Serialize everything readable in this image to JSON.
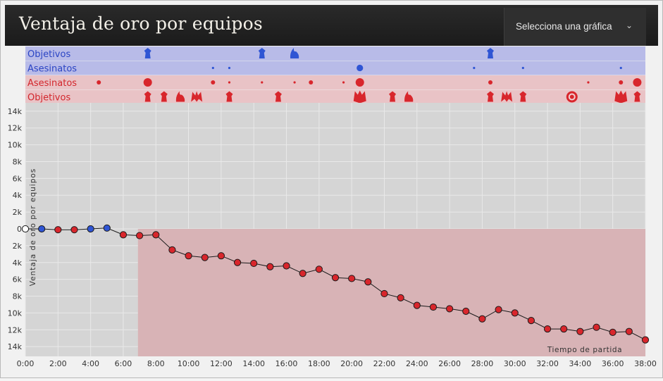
{
  "header": {
    "title": "Ventaja de oro por equipos",
    "selector_label": "Selecciona una gráfica"
  },
  "colors": {
    "blue": "#2f55d4",
    "red": "#d8262c",
    "blue_band": "#b8bbe8",
    "red_band": "#e9c3c6",
    "plot_bg": "#d5d5d5",
    "red_area": "#d8b3b6"
  },
  "timeline_rows": [
    {
      "label": "Objetivos",
      "team": "blue",
      "kind": "objectives",
      "events": [
        {
          "t": 7.5,
          "icon": "tower-icon"
        },
        {
          "t": 14.5,
          "icon": "tower-icon"
        },
        {
          "t": 16.5,
          "icon": "dragon-icon"
        },
        {
          "t": 28.5,
          "icon": "tower-icon"
        }
      ]
    },
    {
      "label": "Asesinatos",
      "team": "blue",
      "kind": "kills",
      "events": [
        {
          "t": 11.5,
          "size": 1
        },
        {
          "t": 12.5,
          "size": 1
        },
        {
          "t": 20.5,
          "size": 3
        },
        {
          "t": 27.5,
          "size": 1
        },
        {
          "t": 30.5,
          "size": 1
        },
        {
          "t": 36.5,
          "size": 1
        }
      ]
    },
    {
      "label": "Asesinatos",
      "team": "red",
      "kind": "kills",
      "events": [
        {
          "t": 4.5,
          "size": 2
        },
        {
          "t": 7.5,
          "size": 4
        },
        {
          "t": 11.5,
          "size": 2
        },
        {
          "t": 12.5,
          "size": 1
        },
        {
          "t": 14.5,
          "size": 1
        },
        {
          "t": 16.5,
          "size": 1
        },
        {
          "t": 17.5,
          "size": 2
        },
        {
          "t": 19.5,
          "size": 1
        },
        {
          "t": 20.5,
          "size": 4
        },
        {
          "t": 28.5,
          "size": 2
        },
        {
          "t": 34.5,
          "size": 1
        },
        {
          "t": 36.5,
          "size": 2
        },
        {
          "t": 37.5,
          "size": 4
        }
      ]
    },
    {
      "label": "Objetivos",
      "team": "red",
      "kind": "objectives",
      "events": [
        {
          "t": 7.5,
          "icon": "tower-icon"
        },
        {
          "t": 8.5,
          "icon": "tower-icon"
        },
        {
          "t": 9.5,
          "icon": "dragon-icon"
        },
        {
          "t": 10.5,
          "icon": "baron-icon"
        },
        {
          "t": 12.5,
          "icon": "tower-icon"
        },
        {
          "t": 15.5,
          "icon": "tower-icon"
        },
        {
          "t": 20.5,
          "icon": "inhibitor-icon"
        },
        {
          "t": 22.5,
          "icon": "tower-icon"
        },
        {
          "t": 23.5,
          "icon": "dragon-icon"
        },
        {
          "t": 28.5,
          "icon": "tower-icon"
        },
        {
          "t": 29.5,
          "icon": "baron-icon"
        },
        {
          "t": 30.5,
          "icon": "tower-icon"
        },
        {
          "t": 33.5,
          "icon": "nexus-icon"
        },
        {
          "t": 36.5,
          "icon": "inhibitor-icon"
        },
        {
          "t": 37.5,
          "icon": "tower-icon"
        }
      ]
    }
  ],
  "chart_data": {
    "type": "line",
    "title": "",
    "xlabel": "Tiempo de partida",
    "ylabel": "Ventaja de oro por equipos",
    "x_unit": "minutes",
    "xlim": [
      0,
      38
    ],
    "ylim": [
      -14000,
      14000
    ],
    "xticks": [
      0,
      2,
      4,
      6,
      8,
      10,
      12,
      14,
      16,
      18,
      20,
      22,
      24,
      26,
      28,
      30,
      32,
      34,
      36,
      38
    ],
    "xtick_labels": [
      "0:00",
      "2:00",
      "4:00",
      "6:00",
      "8:00",
      "10:00",
      "12:00",
      "14:00",
      "16:00",
      "18:00",
      "20:00",
      "22:00",
      "24:00",
      "26:00",
      "28:00",
      "30:00",
      "32:00",
      "34:00",
      "36:00",
      "38:00"
    ],
    "yticks": [
      14000,
      12000,
      10000,
      8000,
      6000,
      4000,
      2000,
      0,
      -2000,
      -4000,
      -6000,
      -8000,
      -10000,
      -12000,
      -14000
    ],
    "ytick_labels": [
      "14k",
      "12k",
      "10k",
      "8k",
      "6k",
      "4k",
      "2k",
      "0",
      "2k",
      "4k",
      "6k",
      "8k",
      "10k",
      "12k",
      "14k"
    ],
    "grid": true,
    "series": [
      {
        "x": [
          0,
          1,
          2,
          3,
          4,
          5,
          6,
          7,
          8,
          9,
          10,
          11,
          12,
          13,
          14,
          15,
          16,
          17,
          18,
          19,
          20,
          21,
          22,
          23,
          24,
          25,
          26,
          27,
          28,
          29,
          30,
          31,
          32,
          33,
          34,
          35,
          36,
          37,
          38
        ],
        "values": [
          0,
          0,
          -100,
          -100,
          0,
          100,
          -700,
          -800,
          -700,
          -2500,
          -3200,
          -3400,
          -3200,
          -4000,
          -4100,
          -4500,
          -4400,
          -5300,
          -4800,
          -5800,
          -5900,
          -6300,
          -7700,
          -8200,
          -9100,
          -9300,
          -9500,
          -9800,
          -10700,
          -9600,
          -10000,
          -10900,
          -11900,
          -11900,
          -12200,
          -11700,
          -12300,
          -12200,
          -13200
        ]
      }
    ]
  }
}
